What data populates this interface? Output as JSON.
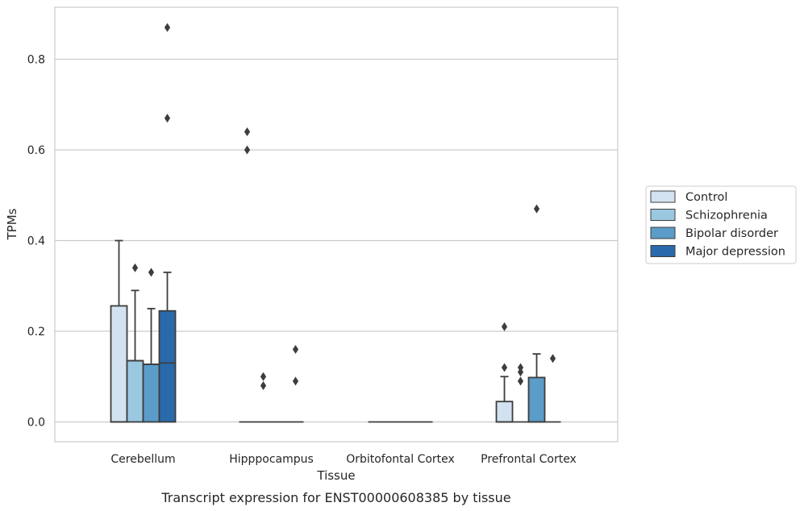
{
  "chart_data": {
    "type": "box",
    "caption": "Transcript expression for ENST00000608385 by tissue",
    "xlabel": "Tissue",
    "ylabel": "TPMs",
    "ylim": [
      -0.043,
      0.917
    ],
    "yticks": [
      0.0,
      0.2,
      0.4,
      0.6,
      0.8
    ],
    "ytick_labels": [
      "0.0",
      "0.2",
      "0.4",
      "0.6",
      "0.8"
    ],
    "grid": "horizontal",
    "legend_position": "right",
    "categories": [
      "Cerebellum",
      "Hipppocampus",
      "Orbitofontal Cortex",
      "Prefrontal Cortex"
    ],
    "series": [
      {
        "name": "Control",
        "color": "#d2e2f1",
        "boxes": [
          {
            "q1": 0.0,
            "median": 0.0,
            "q3": 0.256,
            "whisker_low": 0.0,
            "whisker_high": 0.4,
            "outliers": []
          },
          {
            "q1": 0.0,
            "median": 0.0,
            "q3": 0.0,
            "whisker_low": 0.0,
            "whisker_high": 0.0,
            "outliers": [
              0.6,
              0.64
            ]
          },
          {
            "q1": 0.0,
            "median": 0.0,
            "q3": 0.0,
            "whisker_low": 0.0,
            "whisker_high": 0.0,
            "outliers": []
          },
          {
            "q1": 0.0,
            "median": 0.0,
            "q3": 0.045,
            "whisker_low": 0.0,
            "whisker_high": 0.1,
            "outliers": [
              0.12,
              0.21
            ]
          }
        ]
      },
      {
        "name": "Schizophrenia",
        "color": "#9ac8e0",
        "boxes": [
          {
            "q1": 0.0,
            "median": 0.135,
            "q3": 0.135,
            "whisker_low": 0.0,
            "whisker_high": 0.29,
            "outliers": [
              0.34
            ]
          },
          {
            "q1": 0.0,
            "median": 0.0,
            "q3": 0.0,
            "whisker_low": 0.0,
            "whisker_high": 0.0,
            "outliers": [
              0.08,
              0.1
            ]
          },
          {
            "q1": 0.0,
            "median": 0.0,
            "q3": 0.0,
            "whisker_low": 0.0,
            "whisker_high": 0.0,
            "outliers": []
          },
          {
            "q1": 0.0,
            "median": 0.0,
            "q3": 0.0,
            "whisker_low": 0.0,
            "whisker_high": 0.0,
            "outliers": [
              0.09,
              0.11,
              0.12
            ]
          }
        ]
      },
      {
        "name": "Bipolar disorder",
        "color": "#5b9cc9",
        "boxes": [
          {
            "q1": 0.0,
            "median": 0.127,
            "q3": 0.127,
            "whisker_low": 0.0,
            "whisker_high": 0.25,
            "outliers": [
              0.33
            ]
          },
          {
            "q1": 0.0,
            "median": 0.0,
            "q3": 0.0,
            "whisker_low": 0.0,
            "whisker_high": 0.0,
            "outliers": []
          },
          {
            "q1": 0.0,
            "median": 0.0,
            "q3": 0.0,
            "whisker_low": 0.0,
            "whisker_high": 0.0,
            "outliers": []
          },
          {
            "q1": 0.0,
            "median": 0.0,
            "q3": 0.098,
            "whisker_low": 0.0,
            "whisker_high": 0.15,
            "outliers": [
              0.47
            ]
          }
        ]
      },
      {
        "name": "Major depression",
        "color": "#2a6aab",
        "boxes": [
          {
            "q1": 0.0,
            "median": 0.13,
            "q3": 0.245,
            "whisker_low": 0.0,
            "whisker_high": 0.33,
            "outliers": [
              0.67,
              0.87
            ]
          },
          {
            "q1": 0.0,
            "median": 0.0,
            "q3": 0.0,
            "whisker_low": 0.0,
            "whisker_high": 0.0,
            "outliers": [
              0.09,
              0.16
            ]
          },
          {
            "q1": 0.0,
            "median": 0.0,
            "q3": 0.0,
            "whisker_low": 0.0,
            "whisker_high": 0.0,
            "outliers": []
          },
          {
            "q1": 0.0,
            "median": 0.0,
            "q3": 0.0,
            "whisker_low": 0.0,
            "whisker_high": 0.0,
            "outliers": [
              0.14
            ]
          }
        ]
      }
    ]
  }
}
